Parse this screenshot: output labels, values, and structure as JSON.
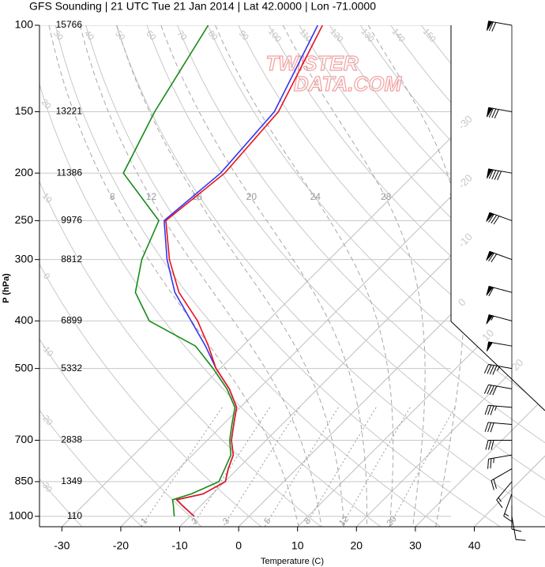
{
  "chart_data": {
    "type": "skewt",
    "title": "GFS Sounding | 21 UTC Tue 21 Jan 2014 | Lat 42.0000 | Lon -71.0000",
    "watermark": [
      "TWISTER",
      "DATA.COM"
    ],
    "x_label": "Temperature (C)",
    "y_label": "P (hPa)",
    "ylog": true,
    "xlim": [
      -33.8,
      52
    ],
    "ylim": [
      100,
      1050
    ],
    "xticks": [
      -30,
      -20,
      -10,
      0,
      10,
      20,
      30,
      40
    ],
    "yticks": [
      100,
      150,
      200,
      250,
      300,
      400,
      500,
      700,
      850,
      1000
    ],
    "heights": [
      15766,
      13221,
      11386,
      9976,
      8812,
      6899,
      5332,
      2838,
      1349,
      110
    ],
    "pressure": [
      1000,
      950,
      925,
      900,
      850,
      800,
      750,
      700,
      650,
      600,
      550,
      500,
      450,
      400,
      350,
      300,
      250,
      200,
      150,
      100
    ],
    "series": [
      {
        "color": "#3535f0",
        "values": [
          -9.3,
          -13.2,
          -15.1,
          -11.6,
          -9.9,
          -11.6,
          -13.1,
          -15.9,
          -18.2,
          -20.6,
          -25.0,
          -30.7,
          -36.3,
          -43.0,
          -50.6,
          -57.5,
          -64.6,
          -63.1,
          -64.4,
          -71.7
        ]
      },
      {
        "color": "#e8141c",
        "values": [
          -9.3,
          -13.2,
          -15.1,
          -11.6,
          -9.9,
          -11.6,
          -13.1,
          -15.9,
          -18.2,
          -20.6,
          -25.0,
          -30.7,
          -35.8,
          -41.9,
          -49.9,
          -57.1,
          -64.3,
          -62.4,
          -63.7,
          -70.9
        ]
      },
      {
        "color": "#178a17",
        "values": [
          -12.7,
          -14.7,
          -15.8,
          -13.6,
          -11.0,
          -12.2,
          -13.5,
          -16.2,
          -18.5,
          -20.9,
          -25.4,
          -31.2,
          -38.0,
          -50.1,
          -57.3,
          -61.8,
          -65.5,
          -79.6,
          -84.7,
          -90.3
        ]
      }
    ],
    "dry_adiabats": [
      -30,
      -20,
      -10,
      0,
      10,
      20,
      30,
      40,
      50,
      60,
      70,
      80,
      90,
      100,
      110,
      120,
      130,
      140,
      150
    ],
    "moist_adiabats": [
      8,
      12,
      16,
      20,
      24,
      28,
      32
    ],
    "mixing_ratios": [
      1,
      2,
      3,
      5,
      8,
      12,
      20
    ],
    "wind": {
      "pressure": [
        100,
        150,
        200,
        250,
        300,
        350,
        400,
        450,
        500,
        550,
        600,
        650,
        700,
        750,
        800,
        850,
        900,
        950,
        1000
      ],
      "direction": [
        280,
        280,
        280,
        290,
        290,
        285,
        285,
        280,
        280,
        280,
        275,
        275,
        270,
        260,
        240,
        220,
        200,
        180,
        170
      ],
      "speed": [
        70,
        80,
        90,
        80,
        70,
        60,
        55,
        50,
        45,
        40,
        35,
        30,
        30,
        25,
        20,
        15,
        15,
        10,
        10
      ]
    }
  }
}
